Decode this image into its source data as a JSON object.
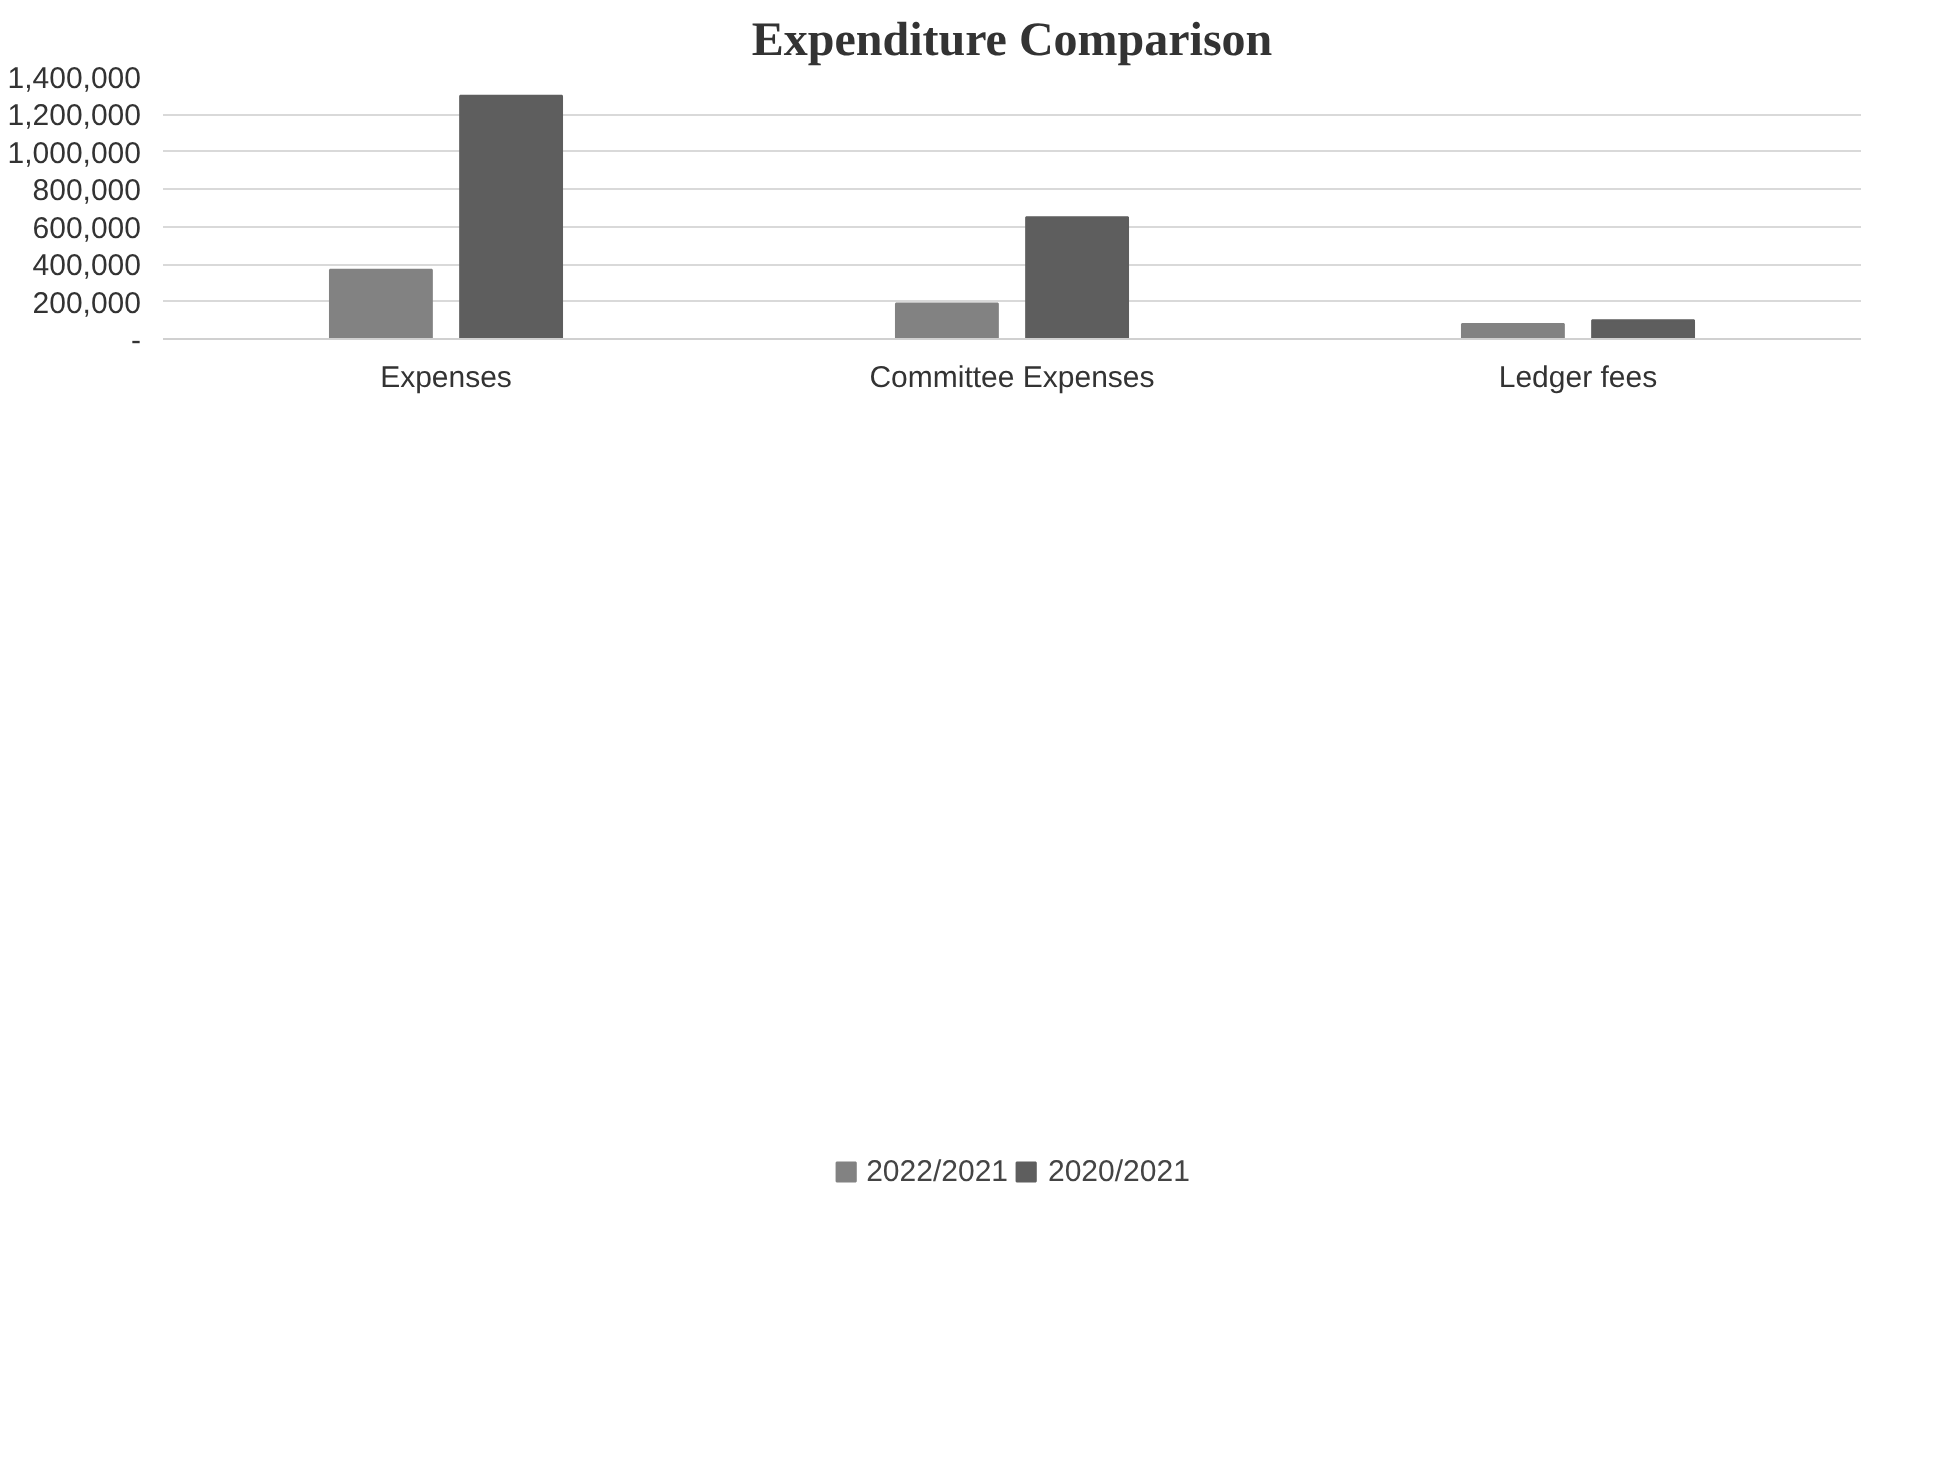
{
  "chart_data": {
    "type": "bar",
    "title": "Expenditure Comparison",
    "categories": [
      "Expenses",
      "Committee Expenses",
      "Ledger fees"
    ],
    "series": [
      {
        "name": "2022/2021",
        "color": "#828282",
        "values": [
          370000,
          190000,
          80000
        ]
      },
      {
        "name": "2020/2021",
        "color": "#5e5e5e",
        "values": [
          1300000,
          650000,
          100000
        ]
      }
    ],
    "ylim": [
      0,
      1400000
    ],
    "yticks": [
      {
        "value": 0,
        "label": "-"
      },
      {
        "value": 200000,
        "label": "200,000"
      },
      {
        "value": 400000,
        "label": "400,000"
      },
      {
        "value": 600000,
        "label": "600,000"
      },
      {
        "value": 800000,
        "label": "800,000"
      },
      {
        "value": 1000000,
        "label": "1,000,000"
      },
      {
        "value": 1200000,
        "label": "1,200,000"
      },
      {
        "value": 1400000,
        "label": "1,400,000"
      }
    ],
    "grid": "y",
    "legend": "bottom"
  }
}
